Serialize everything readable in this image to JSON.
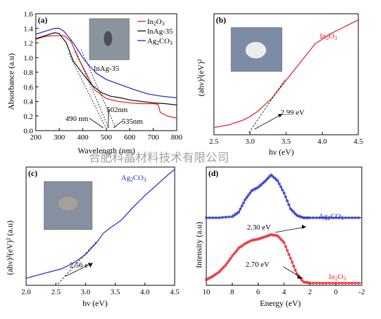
{
  "watermark": "合肥科晶材料技术有限公司",
  "chart_data": [
    {
      "type": "line",
      "panel_label": "(a)",
      "xlabel": "Wavelength (nm)",
      "ylabel": "Absorbance (a.u)",
      "xlim": [
        200,
        800
      ],
      "ylim": [
        0.0,
        1.6
      ],
      "xticks": [
        "200",
        "300",
        "400",
        "500",
        "600",
        "700",
        "800"
      ],
      "yticks": [
        "0.0",
        "0.2",
        "0.4",
        "0.6",
        "0.8",
        "1.0",
        "1.2",
        "1.4",
        "1.6"
      ],
      "inset_label": "InAg-35",
      "legend": "top-right",
      "series": [
        {
          "name": "In2O3",
          "color": "#e8232a",
          "x": [
            200,
            240,
            280,
            300,
            320,
            350,
            380,
            420,
            450,
            500,
            550,
            600,
            650,
            700,
            720,
            730,
            760,
            800
          ],
          "y": [
            1.25,
            1.29,
            1.3,
            1.3,
            1.3,
            1.22,
            1.0,
            0.75,
            0.56,
            0.44,
            0.4,
            0.38,
            0.37,
            0.37,
            0.36,
            0.25,
            0.2,
            0.17
          ]
        },
        {
          "name": "InAg-35",
          "color": "#1a1a1a",
          "x": [
            200,
            240,
            280,
            300,
            330,
            360,
            400,
            440,
            480,
            520,
            560,
            600,
            650,
            700,
            750,
            800
          ],
          "y": [
            1.26,
            1.3,
            1.34,
            1.33,
            1.2,
            0.95,
            0.78,
            0.62,
            0.52,
            0.47,
            0.45,
            0.42,
            0.4,
            0.38,
            0.37,
            0.35
          ]
        },
        {
          "name": "Ag2CO3",
          "color": "#2430d0",
          "x": [
            200,
            240,
            280,
            300,
            320,
            360,
            400,
            430,
            460,
            500,
            560,
            620,
            680,
            740,
            800
          ],
          "y": [
            1.32,
            1.36,
            1.4,
            1.4,
            1.36,
            1.2,
            1.0,
            0.88,
            0.78,
            0.7,
            0.63,
            0.56,
            0.5,
            0.47,
            0.45
          ]
        }
      ],
      "annotations": [
        "490 nm",
        "502nm",
        "535nm"
      ]
    },
    {
      "type": "line",
      "panel_label": "(b)",
      "xlabel": "hν (eV)",
      "ylabel": "(ahν)²(eV)²",
      "xlim": [
        2.5,
        4.5
      ],
      "xticks": [
        "2.5",
        "3.0",
        "3.5",
        "4.0",
        "4.5"
      ],
      "series": [
        {
          "name": "In2O3",
          "color": "#e8232a",
          "x": [
            2.5,
            2.7,
            2.9,
            3.0,
            3.1,
            3.3,
            3.5,
            3.7,
            3.9,
            4.1,
            4.3,
            4.5
          ],
          "y": [
            0.06,
            0.08,
            0.12,
            0.15,
            0.19,
            0.3,
            0.45,
            0.6,
            0.75,
            0.83,
            0.89,
            0.95
          ]
        }
      ],
      "annotations": [
        "2.99 eV"
      ]
    },
    {
      "type": "line",
      "panel_label": "(c)",
      "xlabel": "hν (eV)",
      "ylabel": "(ahν)²(eV)² (a.u)",
      "xlim": [
        2.0,
        4.5
      ],
      "xticks": [
        "2.0",
        "2.5",
        "3.0",
        "3.5",
        "4.0",
        "4.5"
      ],
      "series": [
        {
          "name": "Ag2CO3",
          "color": "#2430d0",
          "x": [
            2.0,
            2.3,
            2.6,
            2.8,
            3.0,
            3.2,
            3.3,
            3.4,
            3.6,
            3.8,
            4.0,
            4.2,
            4.4,
            4.5
          ],
          "y": [
            0.06,
            0.1,
            0.14,
            0.19,
            0.26,
            0.37,
            0.44,
            0.48,
            0.55,
            0.66,
            0.76,
            0.85,
            0.94,
            0.98
          ]
        }
      ],
      "annotations": [
        "2.56 eV"
      ]
    },
    {
      "type": "scatter",
      "panel_label": "(d)",
      "xlabel": "Energy (eV)",
      "ylabel": "Intensity (a.u)",
      "xlim": [
        10,
        -2
      ],
      "xticks": [
        "10",
        "8",
        "6",
        "4",
        "2",
        "0",
        "-2"
      ],
      "series": [
        {
          "name": "Ag2CO3",
          "color": "#2430d0",
          "x": [
            10,
            9,
            8,
            7.5,
            7,
            6.5,
            6,
            5.5,
            5,
            4.5,
            4,
            3.5,
            3,
            2.5,
            2,
            1,
            0,
            -1,
            -2
          ],
          "y": [
            0.6,
            0.6,
            0.61,
            0.65,
            0.76,
            0.84,
            0.87,
            0.92,
            0.98,
            0.93,
            0.82,
            0.68,
            0.62,
            0.6,
            0.6,
            0.6,
            0.6,
            0.6,
            0.6
          ]
        },
        {
          "name": "In2O3",
          "color": "#e8232a",
          "x": [
            10,
            9.5,
            9,
            8.5,
            8,
            7.5,
            7,
            6.5,
            6,
            5.5,
            5,
            4.5,
            4,
            3.5,
            3,
            2.5,
            2,
            1,
            0,
            -1,
            -2
          ],
          "y": [
            0.05,
            0.08,
            0.12,
            0.18,
            0.26,
            0.33,
            0.37,
            0.4,
            0.41,
            0.43,
            0.45,
            0.44,
            0.38,
            0.24,
            0.1,
            0.03,
            0.02,
            0.02,
            0.02,
            0.02,
            0.02
          ]
        }
      ],
      "annotations": [
        "2.30 eV",
        "2.70 eV"
      ]
    }
  ]
}
